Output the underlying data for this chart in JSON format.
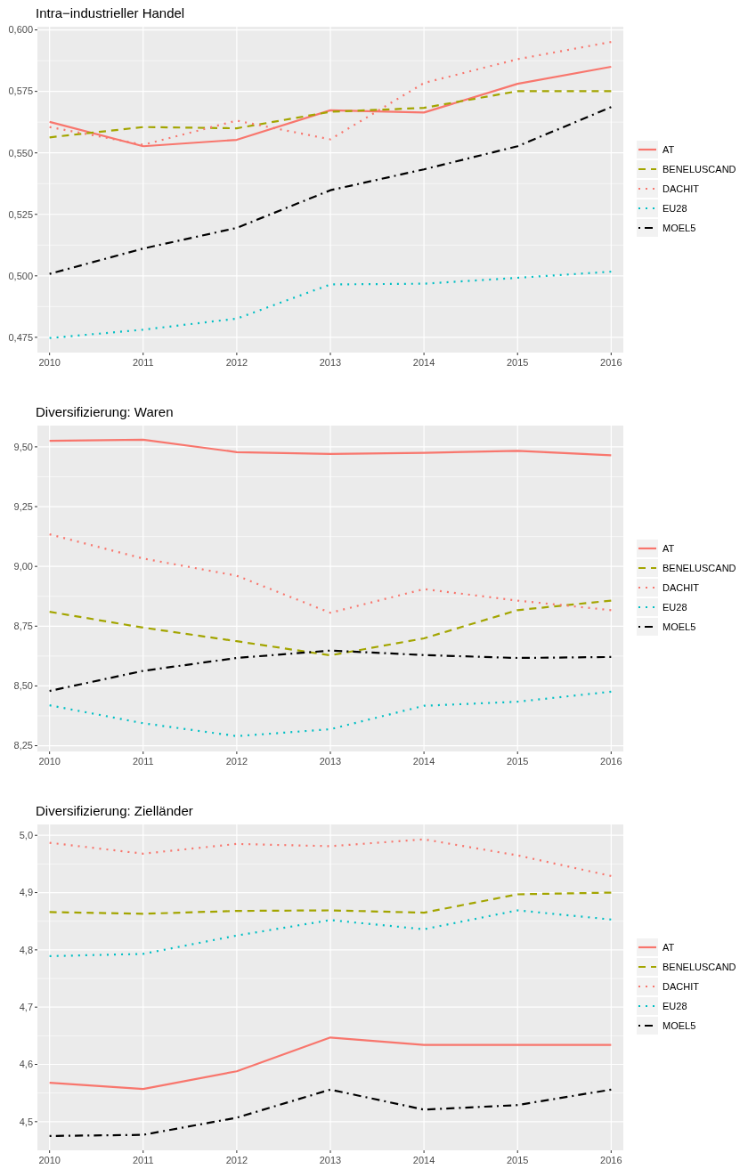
{
  "chart_data": [
    {
      "type": "line",
      "title": "Intra−industrieller Handel",
      "x": [
        2010,
        2011,
        2012,
        2013,
        2014,
        2015,
        2016
      ],
      "xlim": [
        2009.87,
        2016.13
      ],
      "xticks": [
        2010,
        2011,
        2012,
        2013,
        2014,
        2015,
        2016
      ],
      "ylim": [
        0.4688,
        0.6013
      ],
      "yticks": [
        {
          "value": 0.475,
          "label": "0,475"
        },
        {
          "value": 0.5,
          "label": "0,500"
        },
        {
          "value": 0.525,
          "label": "0,525"
        },
        {
          "value": 0.55,
          "label": "0,550"
        },
        {
          "value": 0.575,
          "label": "0,575"
        },
        {
          "value": 0.6,
          "label": "0,600"
        }
      ],
      "grid": true,
      "legend": "right",
      "series": [
        {
          "name": "AT",
          "color": "#f8766d",
          "line_style": "solid",
          "values": [
            0.5626,
            0.5527,
            0.5553,
            0.5673,
            0.5664,
            0.5781,
            0.585
          ]
        },
        {
          "name": "BENELUSCAND",
          "color": "#a3a500",
          "line_style": "dashed",
          "values": [
            0.5563,
            0.5605,
            0.56,
            0.5667,
            0.5683,
            0.5751,
            0.5751
          ]
        },
        {
          "name": "DACHIT",
          "color": "#f8766d",
          "line_style": "dotted",
          "values": [
            0.5605,
            0.5533,
            0.5631,
            0.5555,
            0.5784,
            0.5881,
            0.5951
          ]
        },
        {
          "name": "EU28",
          "color": "#00bfc4",
          "line_style": "dotted",
          "values": [
            0.4747,
            0.4781,
            0.4826,
            0.4965,
            0.4968,
            0.4992,
            0.5017
          ]
        },
        {
          "name": "MOEL5",
          "color": "#000000",
          "line_style": "dashdot",
          "values": [
            0.5008,
            0.5111,
            0.5195,
            0.5348,
            0.5433,
            0.5527,
            0.5686
          ]
        }
      ]
    },
    {
      "type": "line",
      "title": "Diversifizierung: Waren",
      "x": [
        2010,
        2011,
        2012,
        2013,
        2014,
        2015,
        2016
      ],
      "xlim": [
        2009.87,
        2016.13
      ],
      "xticks": [
        2010,
        2011,
        2012,
        2013,
        2014,
        2015,
        2016
      ],
      "ylim": [
        8.226,
        9.589
      ],
      "yticks": [
        {
          "value": 8.25,
          "label": "8,25"
        },
        {
          "value": 8.5,
          "label": "8,50"
        },
        {
          "value": 8.75,
          "label": "8,75"
        },
        {
          "value": 9,
          "label": "9,00"
        },
        {
          "value": 9.25,
          "label": "9,25"
        },
        {
          "value": 9.5,
          "label": "9,50"
        }
      ],
      "grid": true,
      "legend": "right",
      "series": [
        {
          "name": "AT",
          "color": "#f8766d",
          "line_style": "solid",
          "values": [
            9.525,
            9.53,
            9.478,
            9.47,
            9.475,
            9.483,
            9.465
          ]
        },
        {
          "name": "BENELUSCAND",
          "color": "#a3a500",
          "line_style": "dashed",
          "values": [
            8.81,
            8.744,
            8.687,
            8.628,
            8.699,
            8.817,
            8.857
          ]
        },
        {
          "name": "DACHIT",
          "color": "#f8766d",
          "line_style": "dotted",
          "values": [
            9.134,
            9.033,
            8.961,
            8.806,
            8.905,
            8.857,
            8.817
          ]
        },
        {
          "name": "EU28",
          "color": "#00bfc4",
          "line_style": "dotted",
          "values": [
            8.419,
            8.344,
            8.29,
            8.319,
            8.417,
            8.434,
            8.476
          ]
        },
        {
          "name": "MOEL5",
          "color": "#000000",
          "line_style": "dashdot",
          "values": [
            8.479,
            8.563,
            8.617,
            8.648,
            8.629,
            8.617,
            8.621
          ]
        }
      ]
    },
    {
      "type": "line",
      "title": "Diversifizierung: Zielländer",
      "x": [
        2010,
        2011,
        2012,
        2013,
        2014,
        2015,
        2016
      ],
      "xlim": [
        2009.87,
        2016.13
      ],
      "xticks": [
        2010,
        2011,
        2012,
        2013,
        2014,
        2015,
        2016
      ],
      "ylim": [
        4.45,
        5.019
      ],
      "yticks": [
        {
          "value": 4.5,
          "label": "4,5"
        },
        {
          "value": 4.6,
          "label": "4,6"
        },
        {
          "value": 4.7,
          "label": "4,7"
        },
        {
          "value": 4.8,
          "label": "4,8"
        },
        {
          "value": 4.9,
          "label": "4,9"
        },
        {
          "value": 5,
          "label": "5,0"
        }
      ],
      "grid": true,
      "legend": "right",
      "series": [
        {
          "name": "AT",
          "color": "#f8766d",
          "line_style": "solid",
          "values": [
            4.568,
            4.557,
            4.588,
            4.647,
            4.634,
            4.634,
            4.634
          ]
        },
        {
          "name": "BENELUSCAND",
          "color": "#a3a500",
          "line_style": "dashed",
          "values": [
            4.866,
            4.863,
            4.868,
            4.869,
            4.865,
            4.897,
            4.9
          ]
        },
        {
          "name": "DACHIT",
          "color": "#f8766d",
          "line_style": "dotted",
          "values": [
            4.987,
            4.968,
            4.985,
            4.981,
            4.993,
            4.965,
            4.929
          ]
        },
        {
          "name": "EU28",
          "color": "#00bfc4",
          "line_style": "dotted",
          "values": [
            4.789,
            4.793,
            4.825,
            4.852,
            4.836,
            4.869,
            4.853
          ]
        },
        {
          "name": "MOEL5",
          "color": "#000000",
          "line_style": "dashdot",
          "values": [
            4.475,
            4.477,
            4.507,
            4.556,
            4.521,
            4.529,
            4.556
          ]
        }
      ]
    }
  ]
}
